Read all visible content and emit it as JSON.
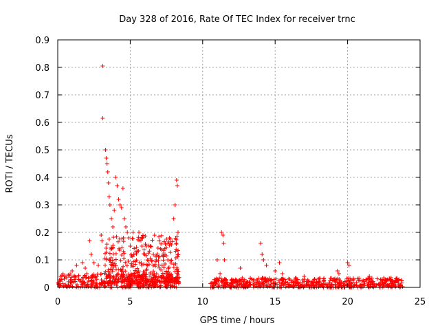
{
  "chart_data": {
    "type": "scatter",
    "title": "Day 328 of 2016, Rate Of TEC Index for receiver trnc",
    "xlabel": "GPS time / hours",
    "ylabel": "ROTI / TECUs",
    "xlim": [
      0,
      25
    ],
    "ylim": [
      0,
      0.9
    ],
    "grid": true,
    "marker": "+",
    "x_ticks": [
      0,
      5,
      10,
      15,
      20,
      25
    ],
    "y_ticks": [
      0,
      0.1,
      0.2,
      0.3,
      0.4,
      0.5,
      0.6,
      0.7,
      0.8,
      0.9
    ],
    "series": [
      {
        "name": "ROTI",
        "color": "#ff0000",
        "baseline_segments": [
          {
            "x_start": 0.0,
            "x_end": 8.4,
            "y_min": 0.0,
            "y_max": 0.05
          },
          {
            "x_start": 10.5,
            "x_end": 23.8,
            "y_min": 0.0,
            "y_max": 0.035
          }
        ],
        "x": [
          3.1,
          3.1,
          3.3,
          3.35,
          3.4,
          3.45,
          3.5,
          3.55,
          3.6,
          3.7,
          3.8,
          3.9,
          4.0,
          4.1,
          4.2,
          4.3,
          4.4,
          4.5,
          4.6,
          4.7,
          4.8,
          4.9,
          5.0,
          5.2,
          5.4,
          5.6,
          5.8,
          6.0,
          6.2,
          6.4,
          6.6,
          6.8,
          7.0,
          7.2,
          7.4,
          7.6,
          7.8,
          8.0,
          8.1,
          8.2,
          8.25,
          8.3,
          2.0,
          2.2,
          2.3,
          1.7,
          2.8,
          3.0,
          3.05,
          0.5,
          1.0,
          1.3,
          1.9,
          2.5,
          11.0,
          11.2,
          11.3,
          11.4,
          11.45,
          11.5,
          12.6,
          14.0,
          14.1,
          14.2,
          14.4,
          15.0,
          15.3,
          15.5,
          17.0,
          19.3,
          19.4,
          20.0,
          20.1,
          21.5,
          22.5,
          23.0
        ],
        "y": [
          0.805,
          0.615,
          0.5,
          0.47,
          0.45,
          0.42,
          0.38,
          0.33,
          0.3,
          0.25,
          0.22,
          0.28,
          0.4,
          0.37,
          0.32,
          0.3,
          0.29,
          0.36,
          0.25,
          0.22,
          0.2,
          0.18,
          0.15,
          0.2,
          0.13,
          0.2,
          0.18,
          0.12,
          0.1,
          0.15,
          0.12,
          0.1,
          0.17,
          0.08,
          0.12,
          0.1,
          0.16,
          0.25,
          0.3,
          0.39,
          0.37,
          0.2,
          0.05,
          0.17,
          0.12,
          0.09,
          0.08,
          0.19,
          0.17,
          0.04,
          0.06,
          0.08,
          0.07,
          0.09,
          0.1,
          0.05,
          0.2,
          0.19,
          0.16,
          0.1,
          0.07,
          0.16,
          0.12,
          0.1,
          0.08,
          0.06,
          0.09,
          0.05,
          0.04,
          0.06,
          0.05,
          0.09,
          0.08,
          0.04,
          0.035,
          0.035
        ]
      }
    ]
  }
}
